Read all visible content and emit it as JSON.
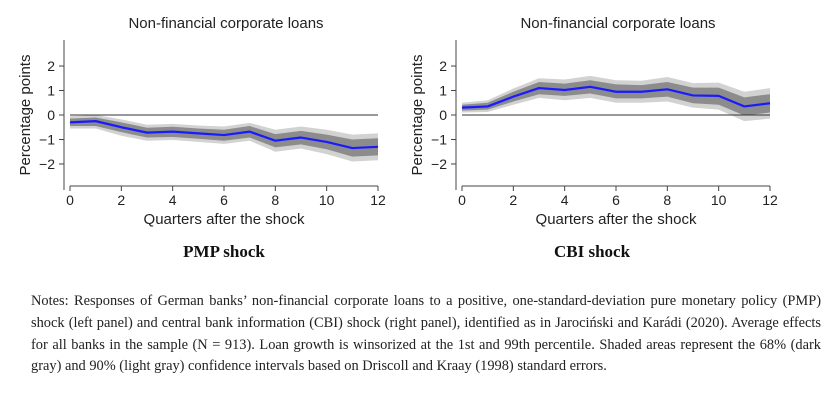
{
  "chart_data": [
    {
      "type": "line",
      "title": "Non-financial corporate loans",
      "xlabel": "Quarters after the shock",
      "ylabel": "Percentage points",
      "caption": "PMP shock",
      "xlim": [
        0,
        12
      ],
      "ylim": [
        -2.9,
        2.9
      ],
      "xticks": [
        0,
        2,
        4,
        6,
        8,
        10,
        12
      ],
      "yticks": [
        -2,
        -1,
        0,
        1,
        2
      ],
      "x": [
        0,
        1,
        2,
        3,
        4,
        5,
        6,
        7,
        8,
        9,
        10,
        11,
        12
      ],
      "series": [
        {
          "values": [
            -0.3,
            -0.25,
            -0.5,
            -0.72,
            -0.68,
            -0.75,
            -0.82,
            -0.68,
            -1.05,
            -0.92,
            -1.1,
            -1.35,
            -1.3
          ],
          "ci68_upper": [
            -0.15,
            -0.1,
            -0.3,
            -0.52,
            -0.48,
            -0.55,
            -0.6,
            -0.45,
            -0.78,
            -0.65,
            -0.8,
            -1.0,
            -0.95
          ],
          "ci68_lower": [
            -0.45,
            -0.45,
            -0.7,
            -0.92,
            -0.9,
            -0.97,
            -1.05,
            -0.92,
            -1.32,
            -1.2,
            -1.4,
            -1.7,
            -1.65
          ],
          "ci90_upper": [
            -0.05,
            0.0,
            -0.18,
            -0.4,
            -0.36,
            -0.43,
            -0.47,
            -0.32,
            -0.6,
            -0.47,
            -0.6,
            -0.8,
            -0.75
          ],
          "ci90_lower": [
            -0.55,
            -0.55,
            -0.85,
            -1.05,
            -1.02,
            -1.1,
            -1.18,
            -1.05,
            -1.5,
            -1.37,
            -1.6,
            -1.9,
            -1.85
          ]
        }
      ],
      "zero_line": 0,
      "colors": {
        "line": "#1a1aff",
        "ci68": "#8c8c8c",
        "ci90": "#d2d2d2",
        "zero": "#333333"
      }
    },
    {
      "type": "line",
      "title": "Non-financial corporate loans",
      "xlabel": "Quarters after the shock",
      "ylabel": "Percentage points",
      "caption": "CBI shock",
      "xlim": [
        0,
        12
      ],
      "ylim": [
        -2.9,
        2.9
      ],
      "xticks": [
        0,
        2,
        4,
        6,
        8,
        10,
        12
      ],
      "yticks": [
        -2,
        -1,
        0,
        1,
        2
      ],
      "x": [
        0,
        1,
        2,
        3,
        4,
        5,
        6,
        7,
        8,
        9,
        10,
        11,
        12
      ],
      "series": [
        {
          "values": [
            0.3,
            0.35,
            0.75,
            1.1,
            1.02,
            1.15,
            0.95,
            0.95,
            1.05,
            0.8,
            0.78,
            0.35,
            0.48
          ],
          "ci68_upper": [
            0.42,
            0.5,
            0.95,
            1.35,
            1.28,
            1.42,
            1.25,
            1.22,
            1.35,
            1.12,
            1.12,
            0.72,
            0.85
          ],
          "ci68_lower": [
            0.18,
            0.22,
            0.55,
            0.85,
            0.78,
            0.88,
            0.68,
            0.68,
            0.75,
            0.48,
            0.42,
            -0.02,
            0.1
          ],
          "ci90_upper": [
            0.5,
            0.6,
            1.08,
            1.5,
            1.45,
            1.6,
            1.42,
            1.4,
            1.55,
            1.3,
            1.32,
            0.95,
            1.1
          ],
          "ci90_lower": [
            0.1,
            0.12,
            0.42,
            0.7,
            0.6,
            0.7,
            0.5,
            0.5,
            0.55,
            0.3,
            0.22,
            -0.25,
            -0.15
          ]
        }
      ],
      "zero_line": 0,
      "colors": {
        "line": "#1a1aff",
        "ci68": "#8c8c8c",
        "ci90": "#d2d2d2",
        "zero": "#333333"
      }
    }
  ],
  "notes": "Notes: Responses of German banks’ non-financial corporate loans to a positive, one-standard-deviation pure monetary policy (PMP) shock (left panel) and central bank information (CBI) shock (right panel), identified as in Jarociński and Karádi (2020). Average effects for all banks in the sample (N = 913). Loan growth is winsorized at the 1st and 99th percentile. Shaded areas represent the 68% (dark gray) and 90% (light gray) confidence intervals based on Driscoll and Kraay (1998) standard errors."
}
